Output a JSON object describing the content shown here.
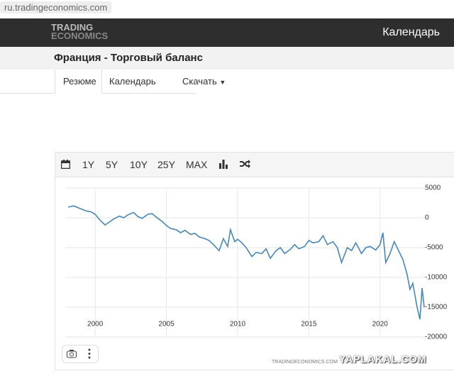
{
  "browser": {
    "url": "ru.tradingeconomics.com"
  },
  "header": {
    "brand_top": "TRADING",
    "brand_bottom": "ECONOMICS",
    "nav_right": "Календарь"
  },
  "page": {
    "title": "Франция - Торговый баланс"
  },
  "tabs": [
    "Резюме",
    "Календарь",
    "Скачать"
  ],
  "toolbar": [
    "1Y",
    "5Y",
    "10Y",
    "25Y",
    "MAX"
  ],
  "chart_data": {
    "type": "line",
    "color": "#4a86b4",
    "grid": true,
    "x": [
      1998.1,
      1998.5,
      1999,
      1999.3,
      1999.7,
      2000,
      2000.3,
      2000.7,
      2001,
      2001.3,
      2001.7,
      2002,
      2002.3,
      2002.7,
      2003,
      2003.3,
      2003.7,
      2004,
      2004.3,
      2004.7,
      2005,
      2005.3,
      2005.7,
      2006,
      2006.3,
      2006.7,
      2007,
      2007.3,
      2007.7,
      2008,
      2008.3,
      2008.7,
      2009,
      2009.3,
      2009.5,
      2009.8,
      2010,
      2010.3,
      2010.6,
      2011,
      2011.3,
      2011.7,
      2012,
      2012.3,
      2012.7,
      2013,
      2013.3,
      2013.7,
      2014,
      2014.3,
      2014.7,
      2015,
      2015.3,
      2015.7,
      2016,
      2016.3,
      2016.7,
      2017,
      2017.3,
      2017.7,
      2018,
      2018.3,
      2018.7,
      2019,
      2019.3,
      2019.7,
      2020,
      2020.2,
      2020.4,
      2020.7,
      2021,
      2021.3,
      2021.6,
      2021.9,
      2022.1,
      2022.3,
      2022.6,
      2022.8,
      2022.95,
      2023.1
    ],
    "values": [
      1800,
      2000,
      1500,
      1200,
      1000,
      600,
      -300,
      -1200,
      -700,
      -200,
      300,
      0,
      500,
      900,
      200,
      -100,
      600,
      700,
      100,
      -600,
      -1300,
      -1800,
      -2000,
      -2500,
      -2100,
      -2800,
      -2600,
      -3200,
      -3500,
      -3800,
      -4500,
      -5500,
      -3500,
      -4800,
      -2000,
      -4000,
      -3600,
      -4200,
      -5000,
      -6500,
      -5800,
      -6000,
      -5200,
      -6800,
      -5500,
      -5000,
      -6000,
      -5300,
      -4500,
      -5200,
      -4800,
      -3800,
      -4200,
      -4000,
      -3000,
      -4500,
      -4000,
      -5000,
      -7500,
      -5000,
      -5500,
      -4200,
      -6000,
      -5000,
      -4800,
      -5400,
      -4500,
      -2500,
      -7500,
      -6000,
      -4000,
      -5500,
      -7000,
      -9500,
      -12000,
      -11000,
      -15000,
      -17000,
      -11800,
      -15000
    ],
    "xlim": [
      1997.9,
      2023.2
    ],
    "xticks": [
      2000,
      2005,
      2010,
      2015,
      2020
    ],
    "ylim": [
      -20000,
      5000
    ],
    "yticks": [
      -20000,
      -15000,
      -10000,
      -5000,
      0,
      5000
    ],
    "source": "TRADINGECONOMICS.COM"
  },
  "watermark": "YAPLAKAL.COM"
}
